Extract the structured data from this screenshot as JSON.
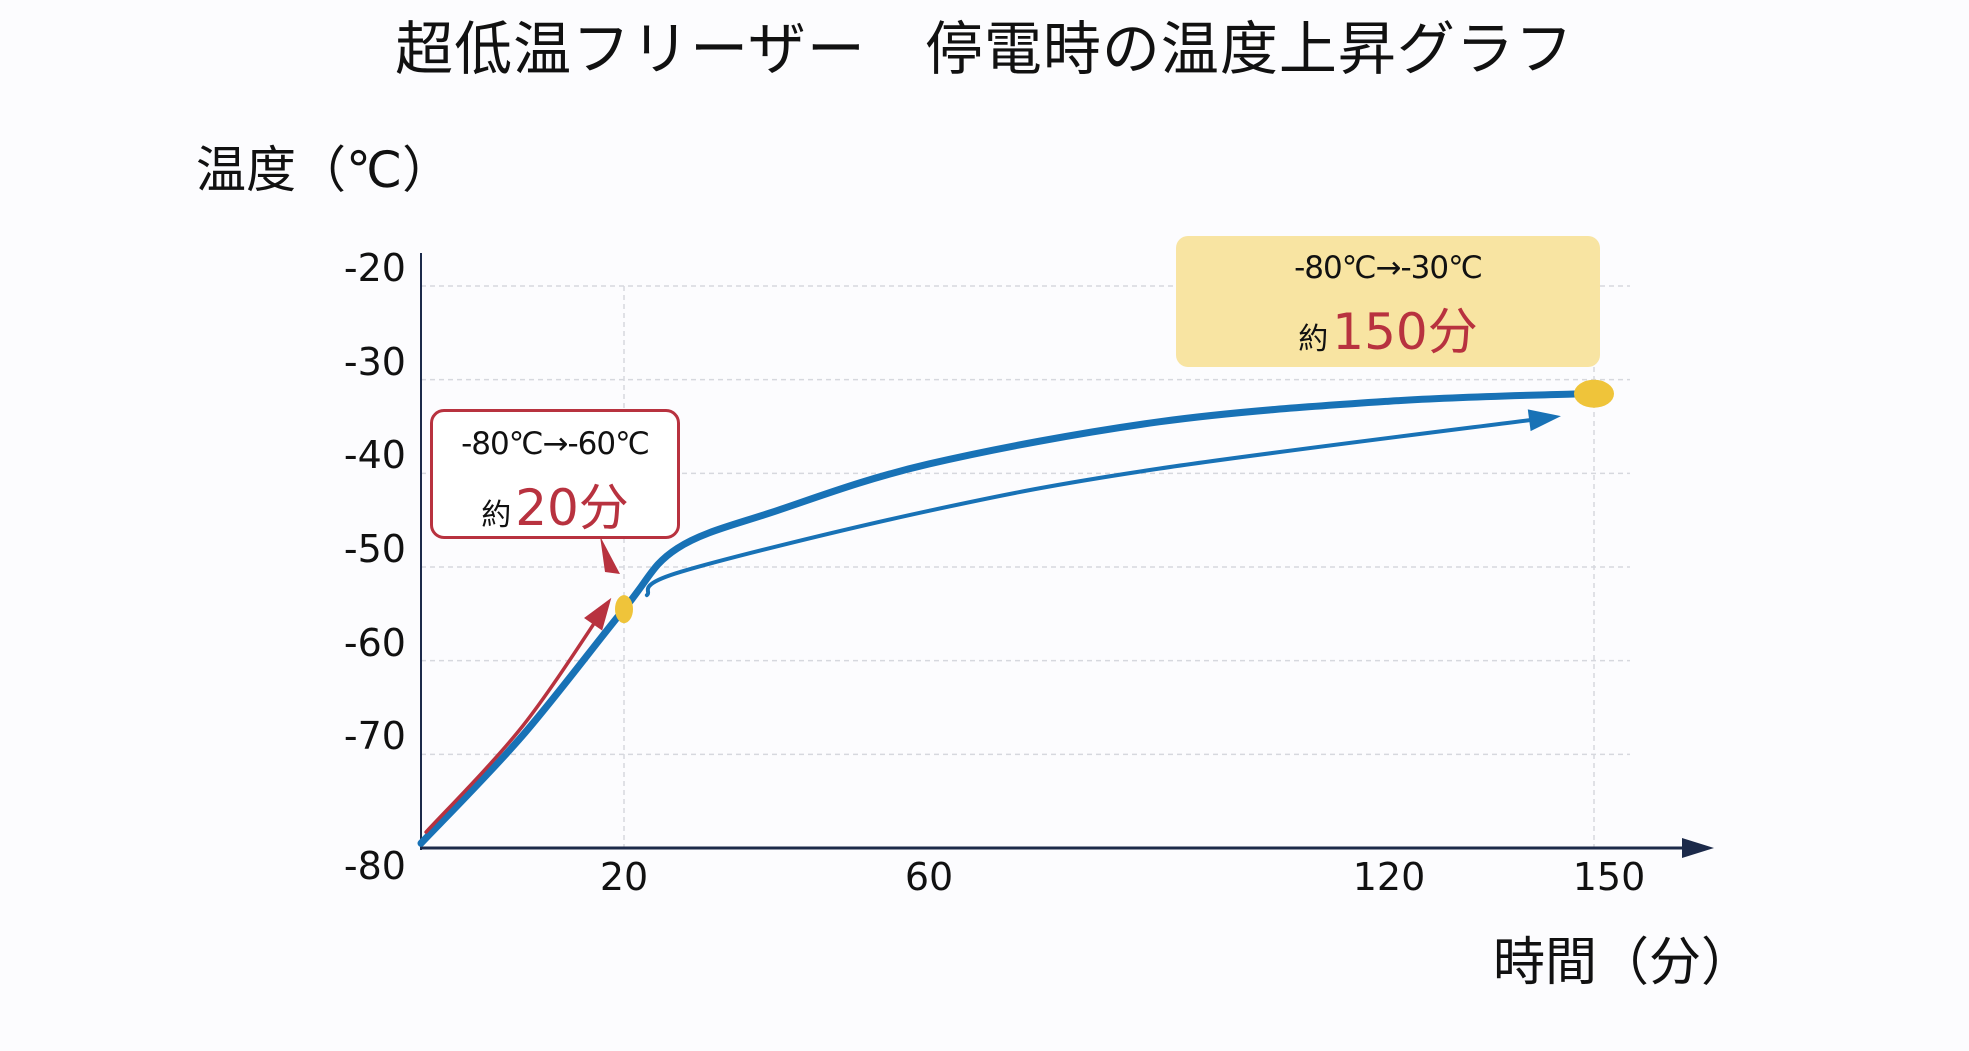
{
  "chart_data": {
    "type": "line",
    "title": "超低温フリーザー　停電時の温度上昇グラフ",
    "ylabel": "温度（℃）",
    "xlabel": "時間（分）",
    "ylim": [
      -80,
      -20
    ],
    "yticks": [
      "-20",
      "-30",
      "-40",
      "-50",
      "-60",
      "-70",
      "-80"
    ],
    "xticks": [
      "20",
      "60",
      "120",
      "150"
    ],
    "grid": true,
    "series": [
      {
        "points": [
          [
            0,
            -79.5
          ],
          [
            10,
            -68
          ],
          [
            20,
            -54.5
          ],
          [
            27,
            -48
          ],
          [
            40,
            -44
          ],
          [
            60,
            -39
          ],
          [
            90,
            -34.5
          ],
          [
            120,
            -32.3
          ],
          [
            148,
            -31.5
          ]
        ],
        "color": "#1872b6"
      },
      {
        "points": [
          [
            23,
            -53
          ],
          [
            27.5,
            -50.5
          ],
          [
            60,
            -44
          ],
          [
            90,
            -39.5
          ],
          [
            144,
            -34
          ]
        ],
        "color": "#1872b6"
      },
      {
        "points": [
          [
            0.5,
            -78.3
          ],
          [
            10,
            -67
          ],
          [
            18.3,
            -54
          ]
        ],
        "color": "#b8323f"
      }
    ],
    "markers": [
      {
        "x": 20,
        "y": -54.5,
        "color": "#efc43a"
      },
      {
        "x": 150,
        "y": -31.5,
        "color": "#efc43a"
      }
    ],
    "annotations": [
      {
        "range": "-80℃→-60℃",
        "prefix": "約",
        "value": "20分",
        "style": "red-outline"
      },
      {
        "range": "-80℃→-30℃",
        "prefix": "約",
        "value": "150分",
        "style": "yellow-fill"
      }
    ]
  }
}
